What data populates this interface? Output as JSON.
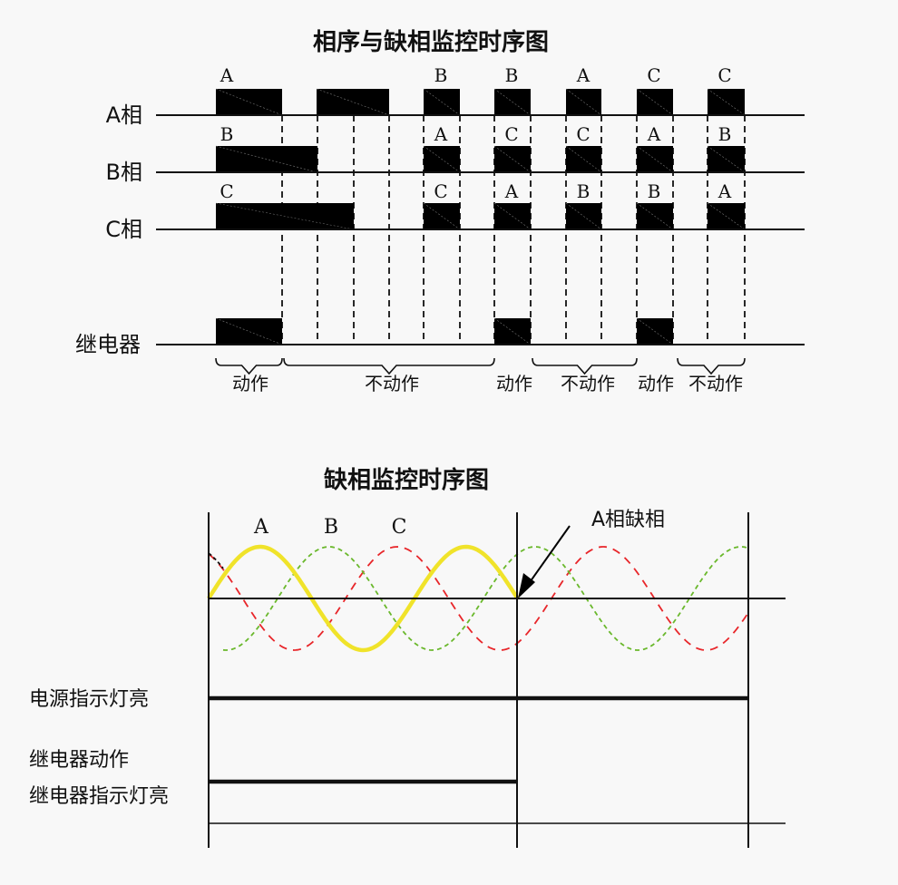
{
  "top": {
    "title": "相序与缺相监控时序图",
    "rows": [
      {
        "label": "A相",
        "labels": [
          "A",
          "B",
          "B",
          "A",
          "C",
          "C"
        ]
      },
      {
        "label": "B相",
        "labels": [
          "B",
          "A",
          "C",
          "C",
          "A",
          "B"
        ]
      },
      {
        "label": "C相",
        "labels": [
          "C",
          "C",
          "A",
          "B",
          "B",
          "A"
        ]
      },
      {
        "label": "继电器"
      }
    ],
    "states": [
      "动作",
      "不动作",
      "动作",
      "不动作",
      "动作",
      "不动作"
    ]
  },
  "bottom": {
    "title": "缺相监控时序图",
    "phase_labels": [
      "A",
      "B",
      "C"
    ],
    "annotation": "A相缺相",
    "signals": [
      "电源指示灯亮",
      "继电器动作",
      "继电器指示灯亮"
    ],
    "colors": {
      "phase_a": "#f0e32a",
      "phase_b": "#6ab82c",
      "phase_c": "#e8262a"
    }
  }
}
